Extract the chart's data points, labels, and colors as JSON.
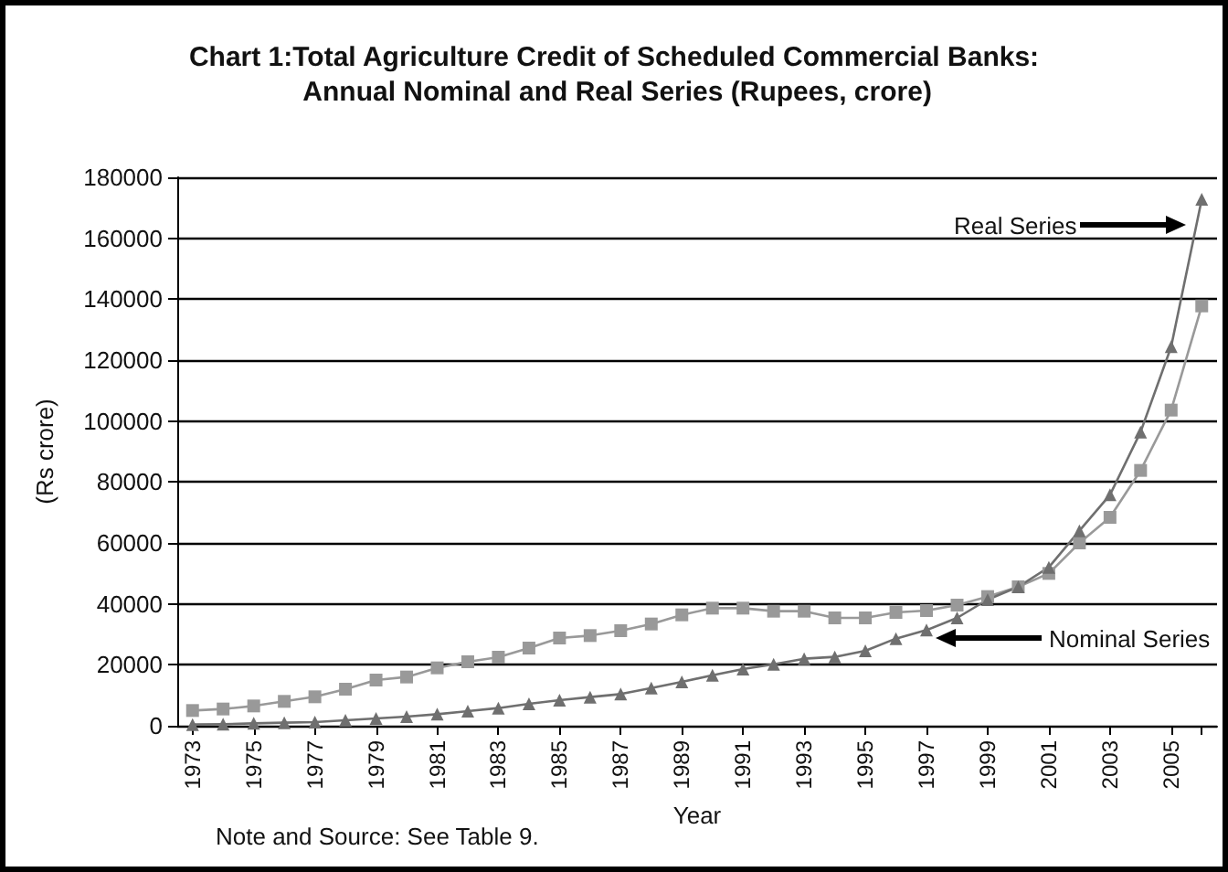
{
  "chart_data": {
    "type": "line",
    "title": "Chart 1:Total Agriculture Credit of Scheduled Commercial Banks: Annual Nominal and Real Series (Rupees, crore)",
    "xlabel": "Year",
    "ylabel": "(Rs crore)",
    "categories": [
      "1973",
      null,
      "1975",
      null,
      "1977",
      null,
      "1979",
      null,
      "1981",
      null,
      "1983",
      null,
      "1985",
      null,
      "1987",
      null,
      "1989",
      null,
      "1991",
      null,
      "1993",
      null,
      "1995",
      null,
      "1997",
      null,
      "1999",
      null,
      "2001",
      null,
      "2003",
      null,
      "2005",
      null
    ],
    "series": [
      {
        "color": "#999999",
        "marker": "square",
        "values": [
          5000,
          5500,
          6500,
          8000,
          9500,
          12000,
          15000,
          16000,
          19000,
          21000,
          22500,
          25500,
          28800,
          29600,
          31200,
          33400,
          36400,
          38600,
          38600,
          37600,
          37600,
          35400,
          35400,
          37200,
          37800,
          39600,
          42400,
          45600,
          50000,
          60000,
          68400,
          83800,
          103600,
          137800
        ]
      },
      {
        "color": "#6f6f6f",
        "marker": "triangle",
        "values": [
          400,
          500,
          800,
          1000,
          1200,
          1800,
          2400,
          3000,
          3800,
          4800,
          5800,
          7200,
          8400,
          9400,
          10400,
          12400,
          14400,
          16600,
          18600,
          20200,
          22000,
          22600,
          24600,
          28600,
          31400,
          35400,
          41400,
          45600,
          52000,
          64000,
          75800,
          96400,
          124400,
          172800
        ]
      }
    ],
    "ylim": [
      0,
      180000
    ],
    "yticks": [
      0,
      20000,
      40000,
      60000,
      80000,
      100000,
      120000,
      140000,
      160000,
      180000
    ],
    "grid": "y",
    "line_style": "solid",
    "annotations": [
      "Real Series",
      "Nominal Series",
      "Note and Source: See Table 9."
    ]
  }
}
